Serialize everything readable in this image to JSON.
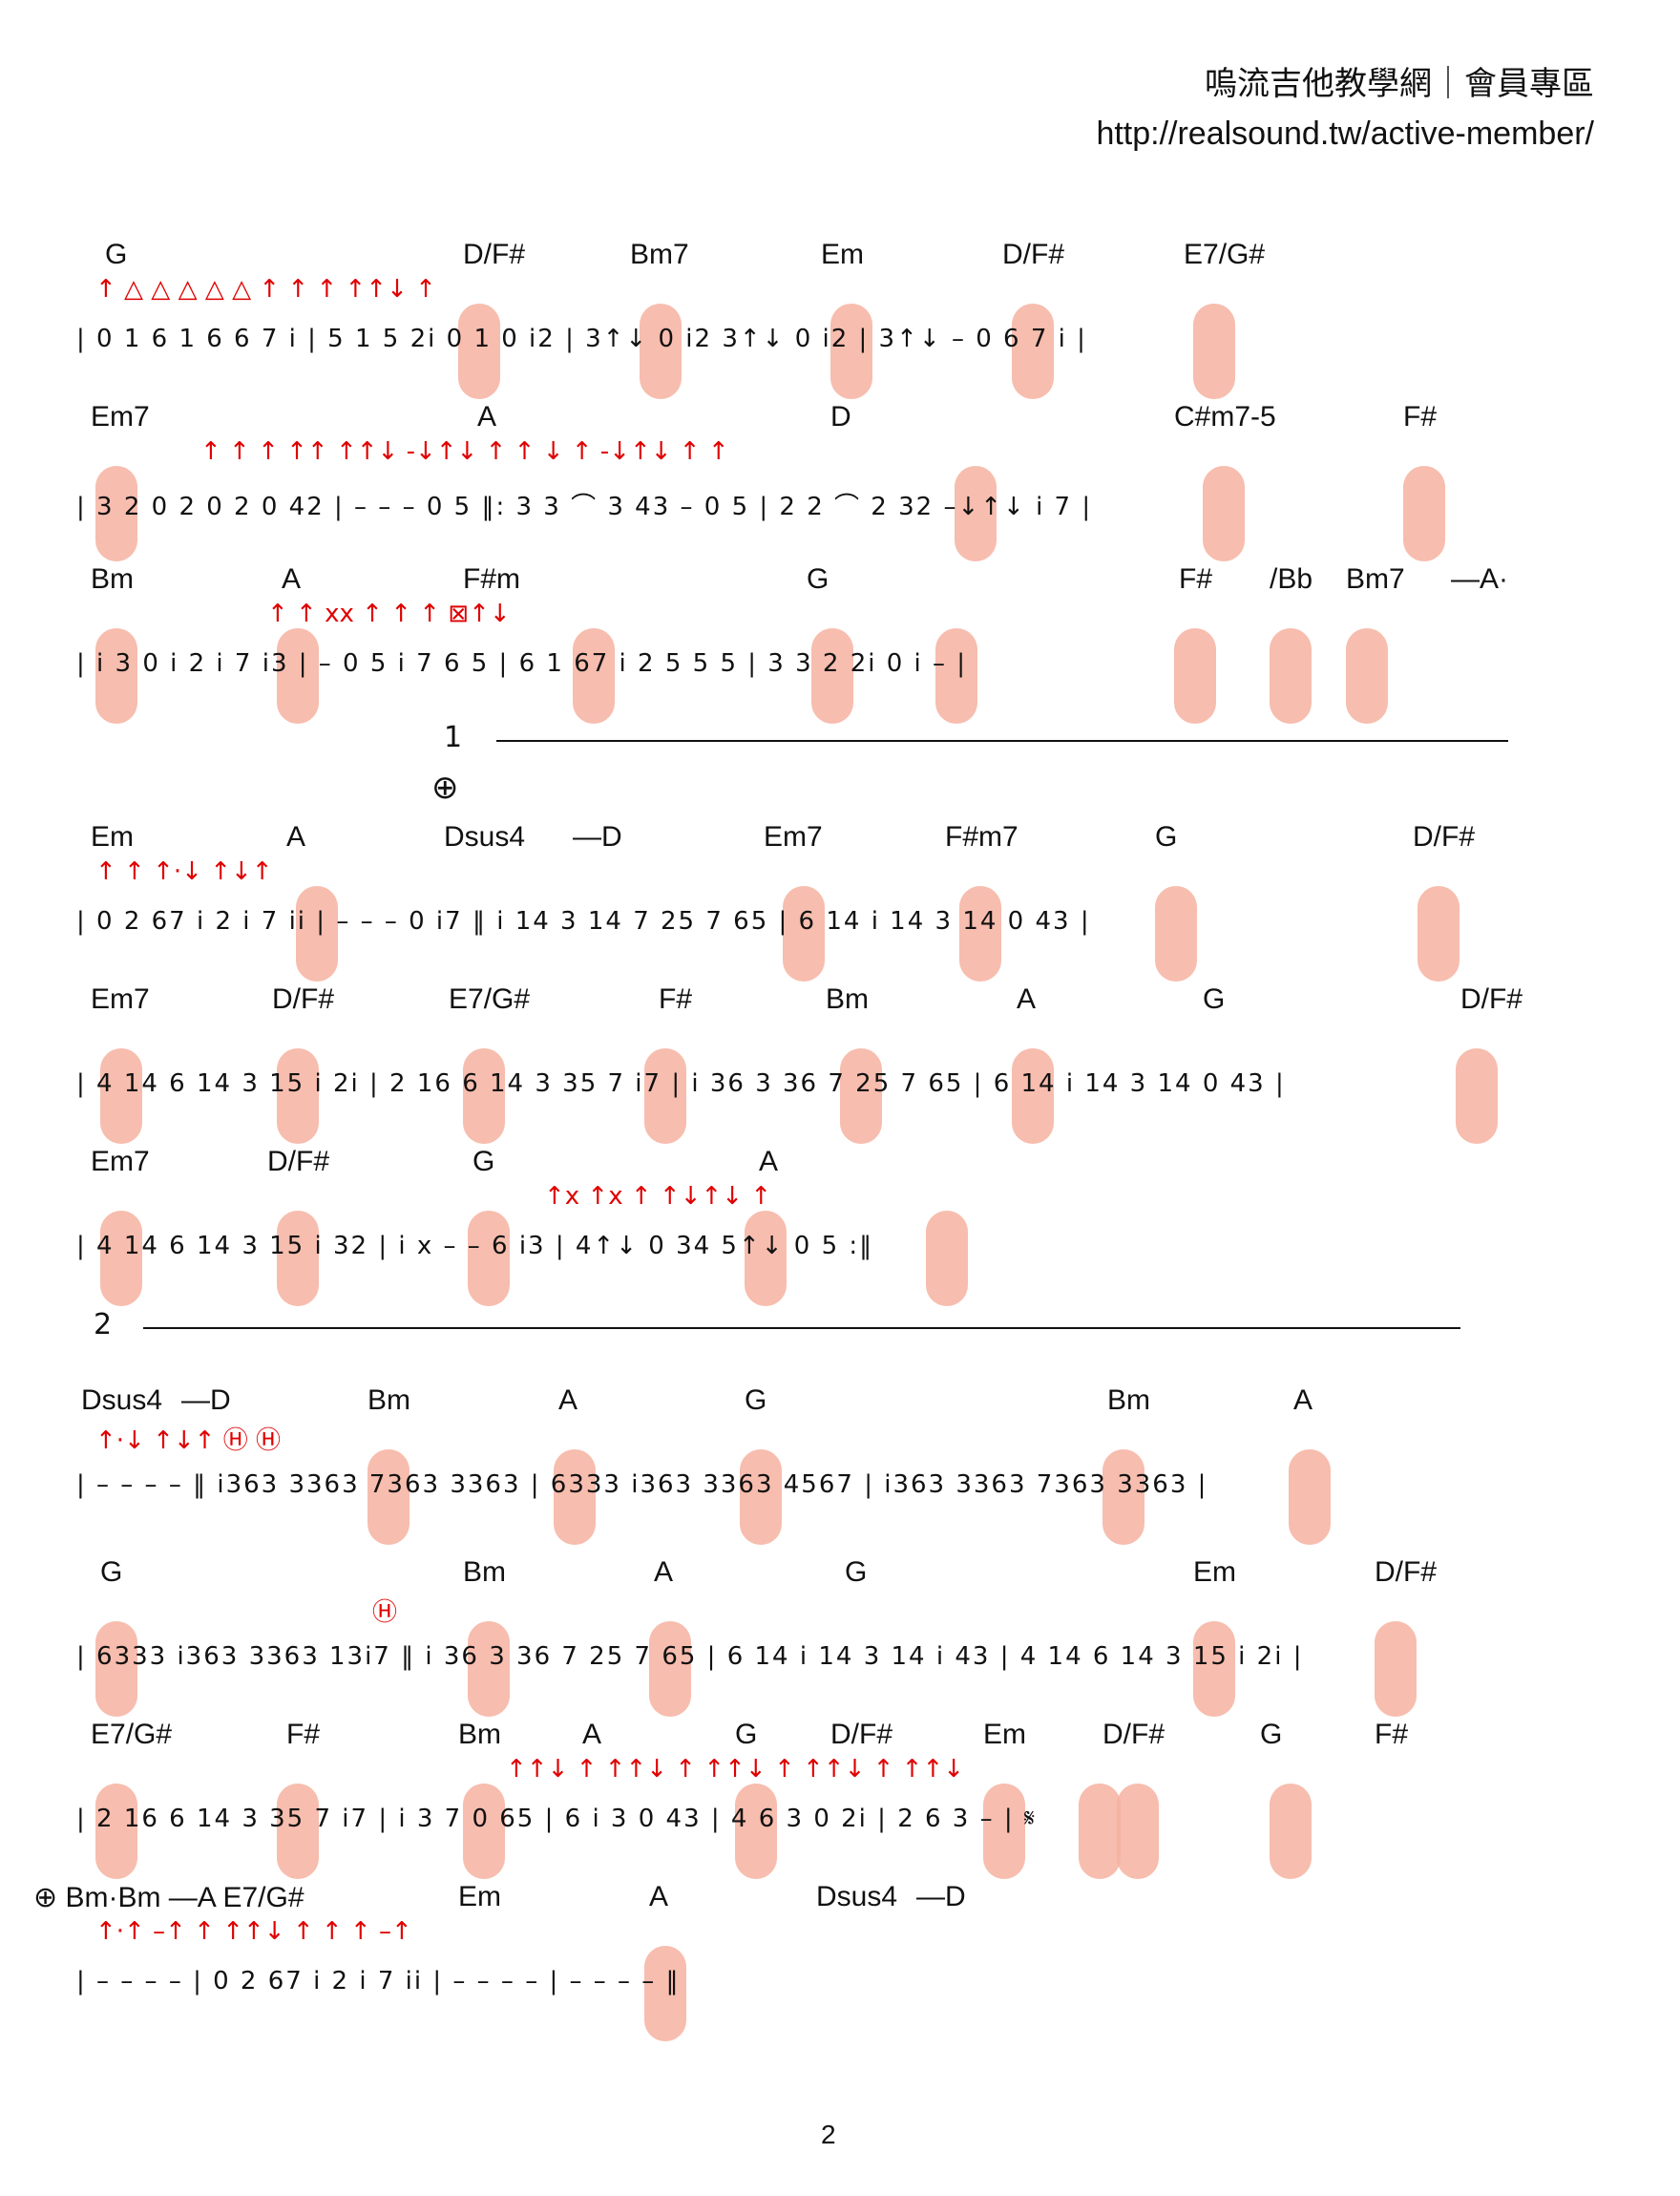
{
  "header": {
    "title": "嗚流吉他教學網｜會員專區",
    "url": "http://realsound.tw/active-member/"
  },
  "page_number": "2",
  "ending1_label": "1",
  "ending2_label": "2",
  "coda_symbol": "⊕",
  "segno_symbol": "𝄋",
  "systems": [
    {
      "chords": [
        "G",
        "D/F#",
        "Bm7",
        "Em",
        "D/F#",
        "E7/G#"
      ],
      "notes": "| 0 1  6 1  6 6  7 i | 5 1  5 2i  0 1  0 i2 | 3↑↓  0 i2  3↑↓  0 i2 | 3↑↓ –  0 6  7 i |",
      "arrows": "↑   △   △ △   △ △     ↑      ↑    ↑    ↑↑↓ ↑"
    },
    {
      "chords": [
        "Em7",
        "A",
        "D",
        "C#m7-5",
        "F#"
      ],
      "notes": "| 3 2  0 2  0 2  0 42 | –  –  –  0 5 ‖: 3 3 ⌒ 3 43  –  0 5 | 2 2 ⌒ 2 32  –↓↑↓  i 7 |",
      "arrows": "↑ ↑ ↑   ↑↑ ↑↑↓ -↓↑↓ ↑   ↑ ↓ ↑ -↓↑↓ ↑   ↑"
    },
    {
      "chords": [
        "Bm",
        "A",
        "F#m",
        "G",
        "F#",
        "/Bb",
        "Bm7",
        "—A·"
      ],
      "notes": "| i 3  0 i  2 i  7 i3 | –  0 5  i 7  6 5 | 6 1  67 i  2 5  5 5 | 3 3  2 2i  0 i  – |",
      "arrows": "↑ ↑   xx ↑   ↑ ↑   ⊠↑↓"
    },
    {
      "chords": [
        "Em",
        "A",
        "Dsus4",
        "—D",
        "Em7",
        "F#m7",
        "G",
        "D/F#"
      ],
      "notes": "| 0 2  67 i  2 i  7 ii | –  –  –  0 i7 ‖ i 14  3 14  7 25  7 65 | 6 14  i 14  3 14  0 43 |",
      "arrows": "↑ ↑   ↑·↓ ↑↓↑"
    },
    {
      "chords": [
        "Em7",
        "D/F#",
        "E7/G#",
        "F#",
        "Bm",
        "A",
        "G",
        "D/F#"
      ],
      "notes": "| 4 14  6 14  3 15  i 2i | 2 16  6 14  3 35  7 i7 | i 36  3 36  7 25  7 65 | 6 14  i 14  3 14  0 43 |",
      "arrows": ""
    },
    {
      "chords": [
        "Em7",
        "D/F#",
        "G",
        "A"
      ],
      "notes": "| 4 14  6 14  3 15  i 32 | i x  –  –  6 i3 | 4↑↓  0 34  5↑↓  0 5 :‖",
      "arrows": "↑x ↑x ↑   ↑↓↑↓ ↑"
    },
    {
      "chords": [
        "Dsus4",
        "—D",
        "Bm",
        "A",
        "G",
        "Bm",
        "A"
      ],
      "notes": "| –  –  –  – ‖ i363  3363  7363  3363 | 6333  i363  3363  4567 | i363  3363  7363  3363 |",
      "arrows": "↑·↓ ↑↓↑   Ⓗ Ⓗ"
    },
    {
      "chords": [
        "G",
        "Bm",
        "A",
        "G",
        "Em",
        "D/F#"
      ],
      "notes": "| 6333  i363  3363  13i7 ‖ i 36  3 36  7 25  7 65 | 6 14  i 14  3 14  i 43 | 4 14  6 14  3 15  i 2i |",
      "arrows": "Ⓗ"
    },
    {
      "chords": [
        "E7/G#",
        "F#",
        "Bm",
        "A",
        "G",
        "D/F#",
        "Em",
        "D/F#",
        "G",
        "F#"
      ],
      "notes": "| 2 16  6 14  3 35  7 i7 | i  3  7  0 65 | 6  i  3  0 43 | 4  6  3  0 2i | 2  6  3  – | 𝄋",
      "arrows": "↑↑↓ ↑   ↑↑↓ ↑   ↑↑↓ ↑   ↑↑↓ ↑ ↑↑↓"
    },
    {
      "chords": [
        "⊕ Bm·Bm —A E7/G#",
        "Em",
        "A",
        "Dsus4",
        "—D"
      ],
      "notes": "| –  –  –  – | 0 2  67 i  2 i  7 ii | –  –  –  – | –  –  –  – ‖",
      "arrows": "↑·↑ –↑ ↑ ↑↑↓   ↑ ↑   ↑ –↑"
    }
  ]
}
